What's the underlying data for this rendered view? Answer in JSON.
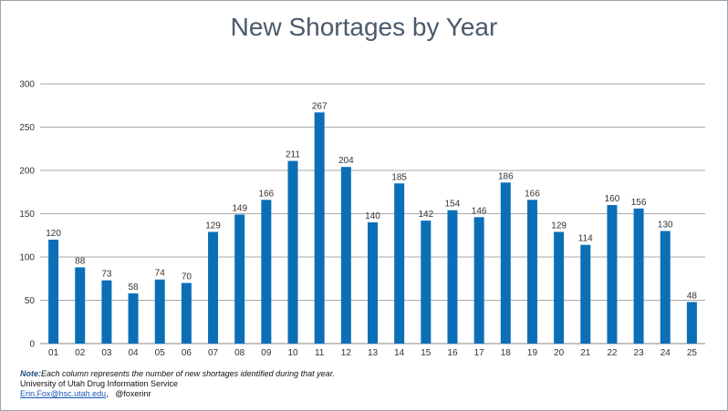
{
  "chart_data": {
    "type": "bar",
    "title": "New Shortages by Year",
    "categories": [
      "01",
      "02",
      "03",
      "04",
      "05",
      "06",
      "07",
      "08",
      "09",
      "10",
      "11",
      "12",
      "13",
      "14",
      "15",
      "16",
      "17",
      "18",
      "19",
      "20",
      "21",
      "22",
      "23",
      "24",
      "25"
    ],
    "values": [
      120,
      88,
      73,
      58,
      74,
      70,
      129,
      149,
      166,
      211,
      267,
      204,
      140,
      185,
      142,
      154,
      146,
      186,
      166,
      129,
      114,
      160,
      156,
      130,
      48
    ],
    "ylim": [
      0,
      300
    ],
    "yticks": [
      0,
      50,
      100,
      150,
      200,
      250,
      300
    ],
    "grid": true,
    "bar_color": "#0b6fb8"
  },
  "footer": {
    "note_label": "Note:",
    "note_text": "Each column represents the number of new shortages identified during that year.",
    "org": "University of Utah Drug Information Service",
    "email": "Erin.Fox@hsc.utah.edu",
    "sep": ",",
    "handle": "@foxerinr"
  }
}
